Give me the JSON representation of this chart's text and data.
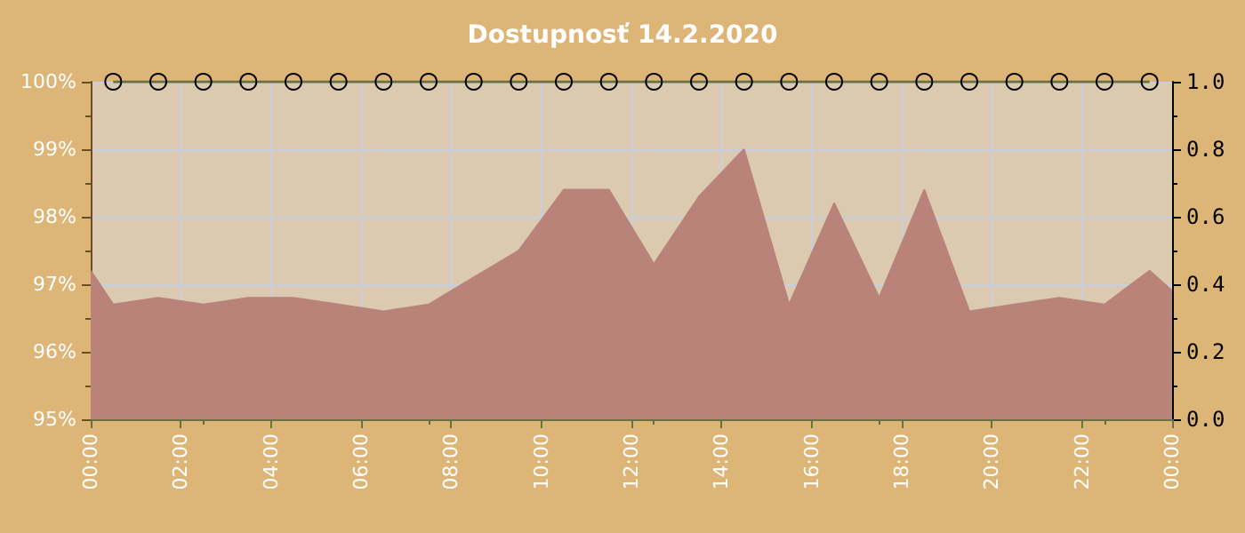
{
  "chart_data": {
    "type": "area",
    "title": "Dostupnosť 14.2.2020",
    "xlim": [
      0,
      24
    ],
    "xticks": [
      {
        "value": 0,
        "label": "00:00"
      },
      {
        "value": 2,
        "label": "02:00"
      },
      {
        "value": 4,
        "label": "04:00"
      },
      {
        "value": 6,
        "label": "06:00"
      },
      {
        "value": 8,
        "label": "08:00"
      },
      {
        "value": 10,
        "label": "10:00"
      },
      {
        "value": 12,
        "label": "12:00"
      },
      {
        "value": 14,
        "label": "14:00"
      },
      {
        "value": 16,
        "label": "16:00"
      },
      {
        "value": 18,
        "label": "18:00"
      },
      {
        "value": 20,
        "label": "20:00"
      },
      {
        "value": 22,
        "label": "22:00"
      },
      {
        "value": 24,
        "label": "00:00"
      }
    ],
    "ylim": [
      95,
      100
    ],
    "yticks": [
      {
        "value": 95,
        "label": "95%"
      },
      {
        "value": 96,
        "label": "96%"
      },
      {
        "value": 97,
        "label": "97%"
      },
      {
        "value": 98,
        "label": "98%"
      },
      {
        "value": 99,
        "label": "99%"
      },
      {
        "value": 100,
        "label": "100%"
      }
    ],
    "y2lim": [
      0,
      1
    ],
    "y2ticks": [
      {
        "value": 0,
        "label": "0.0"
      },
      {
        "value": 0.2,
        "label": "0.2"
      },
      {
        "value": 0.4,
        "label": "0.4"
      },
      {
        "value": 0.6,
        "label": "0.6"
      },
      {
        "value": 0.8,
        "label": "0.8"
      },
      {
        "value": 1,
        "label": "1.0"
      }
    ],
    "grid": true,
    "series": [
      {
        "color": "#b9837a",
        "x": [
          0,
          0.5,
          1.5,
          2.5,
          3.5,
          4.5,
          5.5,
          6.5,
          7.5,
          8.5,
          9.5,
          10.5,
          11.5,
          12.5,
          13.5,
          14.5,
          15.5,
          16.5,
          17.5,
          18.5,
          19.5,
          20.5,
          21.5,
          22.5,
          23.5,
          24
        ],
        "values": [
          97.2,
          96.7,
          96.8,
          96.7,
          96.8,
          96.8,
          96.7,
          96.6,
          96.7,
          97.1,
          97.5,
          98.4,
          98.4,
          97.3,
          98.3,
          99.0,
          96.7,
          98.2,
          96.8,
          98.4,
          96.6,
          96.7,
          96.8,
          96.7,
          97.2,
          96.9
        ]
      },
      {
        "type": "line",
        "axis": "y2",
        "color": "#6b7040",
        "marker": "circle",
        "x": [
          0.5,
          1.5,
          2.5,
          3.5,
          4.5,
          5.5,
          6.5,
          7.5,
          8.5,
          9.5,
          10.5,
          11.5,
          12.5,
          13.5,
          14.5,
          15.5,
          16.5,
          17.5,
          18.5,
          19.5,
          20.5,
          21.5,
          22.5,
          23.5
        ],
        "values": [
          1,
          1,
          1,
          1,
          1,
          1,
          1,
          1,
          1,
          1,
          1,
          1,
          1,
          1,
          1,
          1,
          1,
          1,
          1,
          1,
          1,
          1,
          1,
          1
        ]
      }
    ]
  }
}
